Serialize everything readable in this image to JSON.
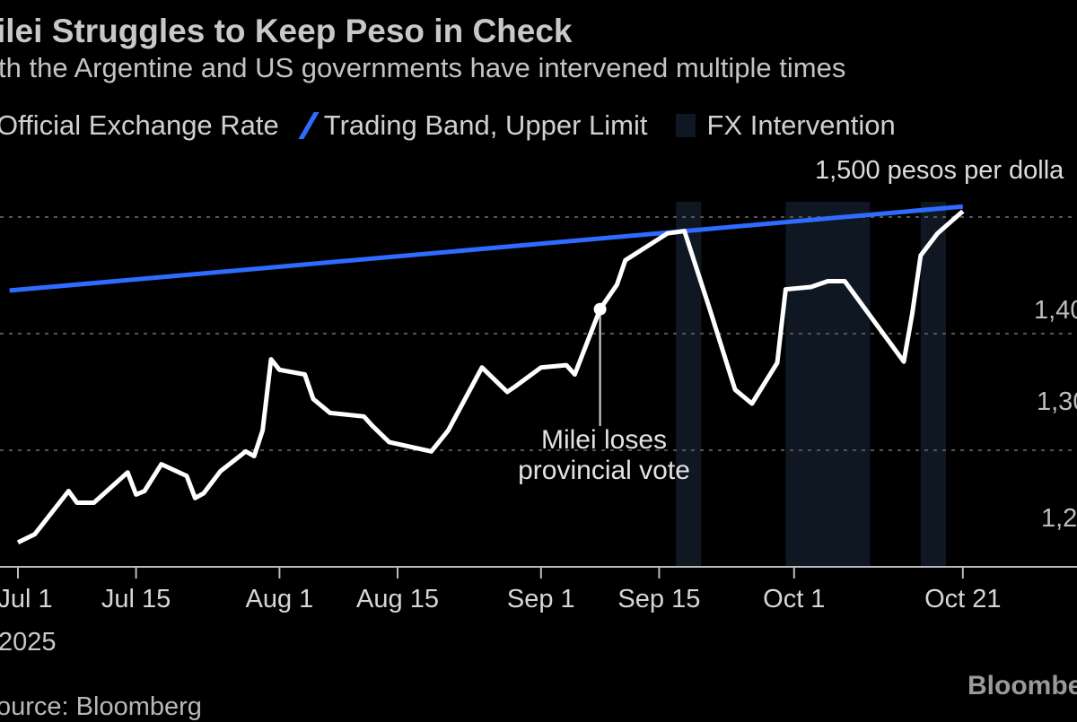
{
  "header": {
    "title": "ilei Struggles to Keep Peso in Check",
    "subtitle": "th the Argentine and US governments have intervened multiple times"
  },
  "legend": {
    "items": [
      {
        "label": "Official Exchange Rate",
        "color": "#ffffff"
      },
      {
        "label": "Trading Band, Upper Limit",
        "color": "#2f6bff"
      },
      {
        "label": "FX Intervention",
        "color": "#0e1722"
      }
    ]
  },
  "footer": {
    "source": "ource: Bloomberg",
    "logo": "Bloombe"
  },
  "chart_data": {
    "type": "line",
    "title": "ilei Struggles to Keep Peso in Check",
    "subtitle": "th the Argentine and US governments have intervened multiple times",
    "unit_label": "1,500 pesos per dolla",
    "year_label": "2025",
    "x_ticks": [
      {
        "date": "2025-07-01",
        "label": "Jul 1"
      },
      {
        "date": "2025-07-15",
        "label": "Jul 15"
      },
      {
        "date": "2025-08-01",
        "label": "Aug 1"
      },
      {
        "date": "2025-08-15",
        "label": "Aug 15"
      },
      {
        "date": "2025-09-01",
        "label": "Sep 1"
      },
      {
        "date": "2025-09-15",
        "label": "Sep 15"
      },
      {
        "date": "2025-10-01",
        "label": "Oct 1"
      },
      {
        "date": "2025-10-21",
        "label": "Oct 21"
      }
    ],
    "y_ticks": [
      {
        "value": 1400,
        "label": "1,40"
      },
      {
        "value": 1300,
        "label": "1,30"
      },
      {
        "value": 1200,
        "label": "1,2"
      }
    ],
    "ylim": [
      1200,
      1500
    ],
    "grid": true,
    "legend_position": "top-left",
    "series": [
      {
        "name": "Official Exchange Rate",
        "color": "#ffffff",
        "points": [
          [
            "2025-07-01",
            1221
          ],
          [
            "2025-07-03",
            1228
          ],
          [
            "2025-07-07",
            1265
          ],
          [
            "2025-07-08",
            1255
          ],
          [
            "2025-07-10",
            1255
          ],
          [
            "2025-07-14",
            1281
          ],
          [
            "2025-07-15",
            1262
          ],
          [
            "2025-07-16",
            1265
          ],
          [
            "2025-07-18",
            1288
          ],
          [
            "2025-07-21",
            1278
          ],
          [
            "2025-07-22",
            1259
          ],
          [
            "2025-07-23",
            1263
          ],
          [
            "2025-07-25",
            1282
          ],
          [
            "2025-07-28",
            1299
          ],
          [
            "2025-07-29",
            1295
          ],
          [
            "2025-07-30",
            1317
          ],
          [
            "2025-07-31",
            1378
          ],
          [
            "2025-08-01",
            1369
          ],
          [
            "2025-08-04",
            1365
          ],
          [
            "2025-08-05",
            1344
          ],
          [
            "2025-08-07",
            1332
          ],
          [
            "2025-08-11",
            1329
          ],
          [
            "2025-08-12",
            1321
          ],
          [
            "2025-08-14",
            1307
          ],
          [
            "2025-08-19",
            1299
          ],
          [
            "2025-08-21",
            1317
          ],
          [
            "2025-08-25",
            1371
          ],
          [
            "2025-08-27",
            1357
          ],
          [
            "2025-08-28",
            1350
          ],
          [
            "2025-08-29",
            1355
          ],
          [
            "2025-09-01",
            1371
          ],
          [
            "2025-09-04",
            1373
          ],
          [
            "2025-09-05",
            1365
          ],
          [
            "2025-09-08",
            1421
          ],
          [
            "2025-09-10",
            1442
          ],
          [
            "2025-09-11",
            1463
          ],
          [
            "2025-09-16",
            1486
          ],
          [
            "2025-09-18",
            1488
          ],
          [
            "2025-09-21",
            1421
          ],
          [
            "2025-09-24",
            1352
          ],
          [
            "2025-09-26",
            1340
          ],
          [
            "2025-09-29",
            1375
          ],
          [
            "2025-09-30",
            1438
          ],
          [
            "2025-10-03",
            1440
          ],
          [
            "2025-10-05",
            1445
          ],
          [
            "2025-10-07",
            1445
          ],
          [
            "2025-10-14",
            1376
          ],
          [
            "2025-10-15",
            1417
          ],
          [
            "2025-10-16",
            1467
          ],
          [
            "2025-10-18",
            1486
          ],
          [
            "2025-10-21",
            1505
          ]
        ]
      },
      {
        "name": "Trading Band, Upper Limit",
        "color": "#2f6bff",
        "points": [
          [
            "2025-06-30",
            1437
          ],
          [
            "2025-10-21",
            1509
          ]
        ]
      }
    ],
    "shaded_periods": [
      {
        "name": "FX Intervention",
        "start": "2025-09-17",
        "end": "2025-09-19"
      },
      {
        "name": "FX Intervention",
        "start": "2025-09-30",
        "end": "2025-10-09"
      },
      {
        "name": "FX Intervention",
        "start": "2025-10-16",
        "end": "2025-10-18"
      }
    ],
    "annotations": [
      {
        "date": "2025-09-08",
        "value": 1421,
        "text": "Milei loses provincial vote"
      }
    ]
  }
}
